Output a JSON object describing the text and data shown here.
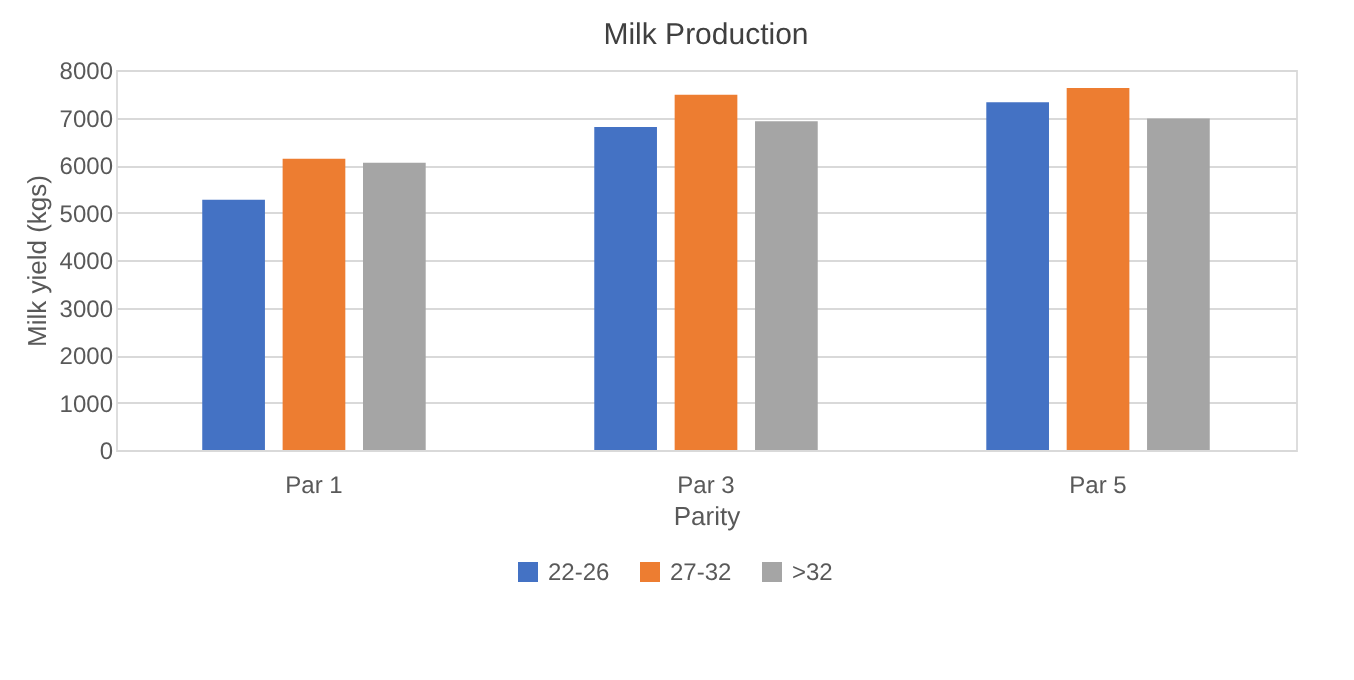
{
  "chart_data": {
    "type": "bar",
    "title": "Milk Production",
    "xlabel": "Parity",
    "ylabel": "Milk yield (kgs)",
    "categories": [
      "Par 1",
      "Par 3",
      "Par 5"
    ],
    "series": [
      {
        "name": "22-26",
        "color": "#4472c4",
        "values": [
          5270,
          6800,
          7320
        ]
      },
      {
        "name": "27-32",
        "color": "#ed7d31",
        "values": [
          6130,
          7480,
          7620
        ]
      },
      {
        "name": ">32",
        "color": "#a5a5a5",
        "values": [
          6050,
          6920,
          6980
        ]
      }
    ],
    "ylim": [
      0,
      8000
    ],
    "yticks": [
      0,
      1000,
      2000,
      3000,
      4000,
      5000,
      6000,
      7000,
      8000
    ],
    "grid": "y",
    "legend": "bottom"
  }
}
